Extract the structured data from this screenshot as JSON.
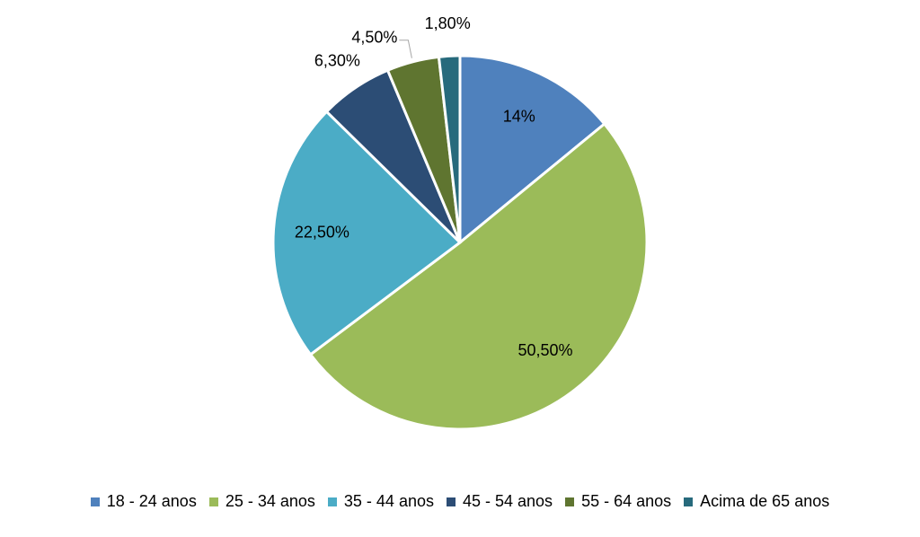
{
  "chart_data": {
    "type": "pie",
    "categories": [
      "18 - 24 anos",
      "25 - 34 anos",
      "35 - 44 anos",
      "45 - 54 anos",
      "55 - 64 anos",
      "Acima de 65 anos"
    ],
    "values": [
      14,
      50.5,
      22.5,
      6.3,
      4.5,
      1.8
    ],
    "value_labels": [
      "14%",
      "50,50%",
      "22,50%",
      "6,30%",
      "4,50%",
      "1,80%"
    ],
    "colors": [
      "#4f81bd",
      "#9bbb59",
      "#4bacc6",
      "#2c4d75",
      "#5f7530",
      "#276a7c"
    ]
  }
}
